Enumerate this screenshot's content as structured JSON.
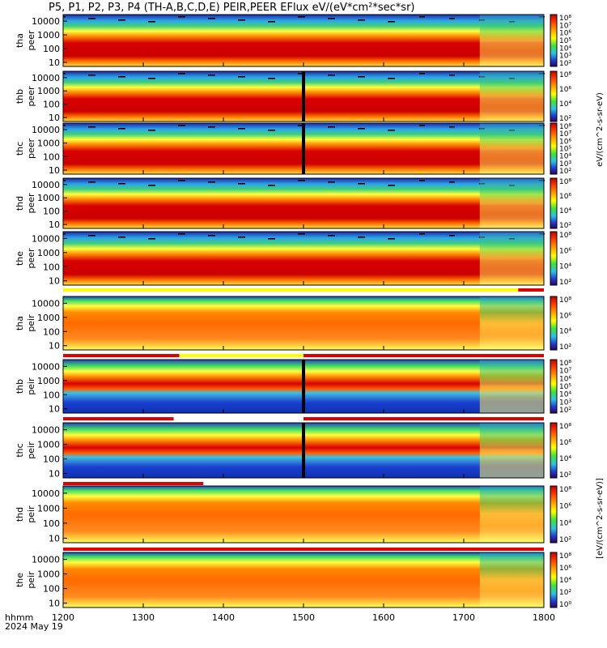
{
  "title": "P5, P1, P2, P3, P4 (TH-A,B,C,D,E) PEIR,PEER EFlux eV/(eV*cm²*sec*sr)",
  "footer": {
    "hhmm": "hhmm",
    "date": "2024 May 19"
  },
  "colorbar_label": "eV/(cm^2-s-sr-eV)",
  "colorbar_label_secondary": "[eV/(cm^2-s-sr-eV)]",
  "chart_data": {
    "type": "heatmap",
    "x_ticks": [
      "1200",
      "1300",
      "1400",
      "1500",
      "1600",
      "1700",
      "1800"
    ],
    "xlim": [
      1200,
      1800
    ],
    "y_scale": "log",
    "colorbar_scale": "log",
    "colors": {
      "high": "#cc0000",
      "mid": "#ffff00",
      "low": "#0000cc",
      "bg": "#000000"
    },
    "panels": [
      {
        "probe": "tha",
        "species": "peer",
        "y_ticks": [
          "10000",
          "1000",
          "100",
          "10"
        ],
        "ylim": [
          5,
          30000
        ],
        "cbar_ticks": [
          "10⁸",
          "10⁷",
          "10⁶",
          "10⁵",
          "10⁴",
          "10³",
          "10²"
        ],
        "cbar_range": [
          100,
          100000000
        ]
      },
      {
        "probe": "thb",
        "species": "peer",
        "y_ticks": [
          "10000",
          "1000",
          "100",
          "10"
        ],
        "ylim": [
          5,
          30000
        ],
        "cbar_ticks": [
          "10⁸",
          "10⁶",
          "10⁴",
          "10²"
        ],
        "cbar_range": [
          100,
          100000000
        ]
      },
      {
        "probe": "thc",
        "species": "peer",
        "y_ticks": [
          "10000",
          "1000",
          "100",
          "10"
        ],
        "ylim": [
          5,
          30000
        ],
        "cbar_ticks": [
          "10⁸",
          "10⁷",
          "10⁶",
          "10⁵",
          "10⁴",
          "10³",
          "10²"
        ],
        "cbar_range": [
          100,
          100000000
        ]
      },
      {
        "probe": "thd",
        "species": "peer",
        "y_ticks": [
          "10000",
          "1000",
          "100",
          "10"
        ],
        "ylim": [
          5,
          30000
        ],
        "cbar_ticks": [
          "10⁸",
          "10⁶",
          "10⁴",
          "10²"
        ],
        "cbar_range": [
          100,
          100000000
        ]
      },
      {
        "probe": "the",
        "species": "peer",
        "y_ticks": [
          "10000",
          "1000",
          "100",
          "10"
        ],
        "ylim": [
          5,
          30000
        ],
        "cbar_ticks": [
          "10⁸",
          "10⁶",
          "10⁴",
          "10²"
        ],
        "cbar_range": [
          100,
          100000000
        ]
      },
      {
        "probe": "tha",
        "species": "peir",
        "y_ticks": [
          "10000",
          "1000",
          "100",
          "10"
        ],
        "ylim": [
          5,
          30000
        ],
        "cbar_ticks": [
          "10⁸",
          "10⁶",
          "10⁴",
          "10²"
        ],
        "cbar_range": [
          100,
          100000000
        ]
      },
      {
        "probe": "thb",
        "species": "peir",
        "y_ticks": [
          "10000",
          "1000",
          "100",
          "10"
        ],
        "ylim": [
          5,
          30000
        ],
        "cbar_ticks": [
          "10⁸",
          "10⁷",
          "10⁶",
          "10⁵",
          "10⁴",
          "10³",
          "10²"
        ],
        "cbar_range": [
          100,
          100000000
        ]
      },
      {
        "probe": "thc",
        "species": "peir",
        "y_ticks": [
          "10000",
          "1000",
          "100",
          "10"
        ],
        "ylim": [
          5,
          30000
        ],
        "cbar_ticks": [
          "10⁸",
          "10⁶",
          "10⁴",
          "10²"
        ],
        "cbar_range": [
          100,
          100000000
        ]
      },
      {
        "probe": "thd",
        "species": "peir",
        "y_ticks": [
          "10000",
          "1000",
          "100",
          "10"
        ],
        "ylim": [
          5,
          30000
        ],
        "cbar_ticks": [
          "10⁸",
          "10⁶",
          "10⁴",
          "10²"
        ],
        "cbar_range": [
          100,
          100000000
        ]
      },
      {
        "probe": "the",
        "species": "peir",
        "y_ticks": [
          "10000",
          "1000",
          "100",
          "10"
        ],
        "ylim": [
          5,
          30000
        ],
        "cbar_ticks": [
          "10⁸",
          "10⁶",
          "10⁴",
          "10²",
          "10⁰"
        ],
        "cbar_range": [
          1,
          100000000
        ]
      }
    ],
    "mode_bars": [
      {
        "after_panel": 4,
        "segments": [
          {
            "from": 1200,
            "to": 1768,
            "color": "#ffff00"
          },
          {
            "from": 1768,
            "to": 1800,
            "color": "#dd0000"
          }
        ]
      },
      {
        "after_panel": 5,
        "segments": [
          {
            "from": 1200,
            "to": 1345,
            "color": "#dd0000"
          },
          {
            "from": 1345,
            "to": 1500,
            "color": "#ffff00"
          },
          {
            "from": 1500,
            "to": 1800,
            "color": "#dd0000"
          }
        ]
      },
      {
        "after_panel": 6,
        "segments": [
          {
            "from": 1200,
            "to": 1338,
            "color": "#dd0000"
          },
          {
            "from": 1338,
            "to": 1500,
            "color": "#ffffff"
          },
          {
            "from": 1500,
            "to": 1800,
            "color": "#dd0000"
          }
        ]
      },
      {
        "after_panel": 7,
        "segments": [
          {
            "from": 1200,
            "to": 1375,
            "color": "#dd0000"
          }
        ]
      },
      {
        "after_panel": 8,
        "segments": [
          {
            "from": 1200,
            "to": 1800,
            "color": "#dd0000"
          }
        ]
      }
    ]
  }
}
